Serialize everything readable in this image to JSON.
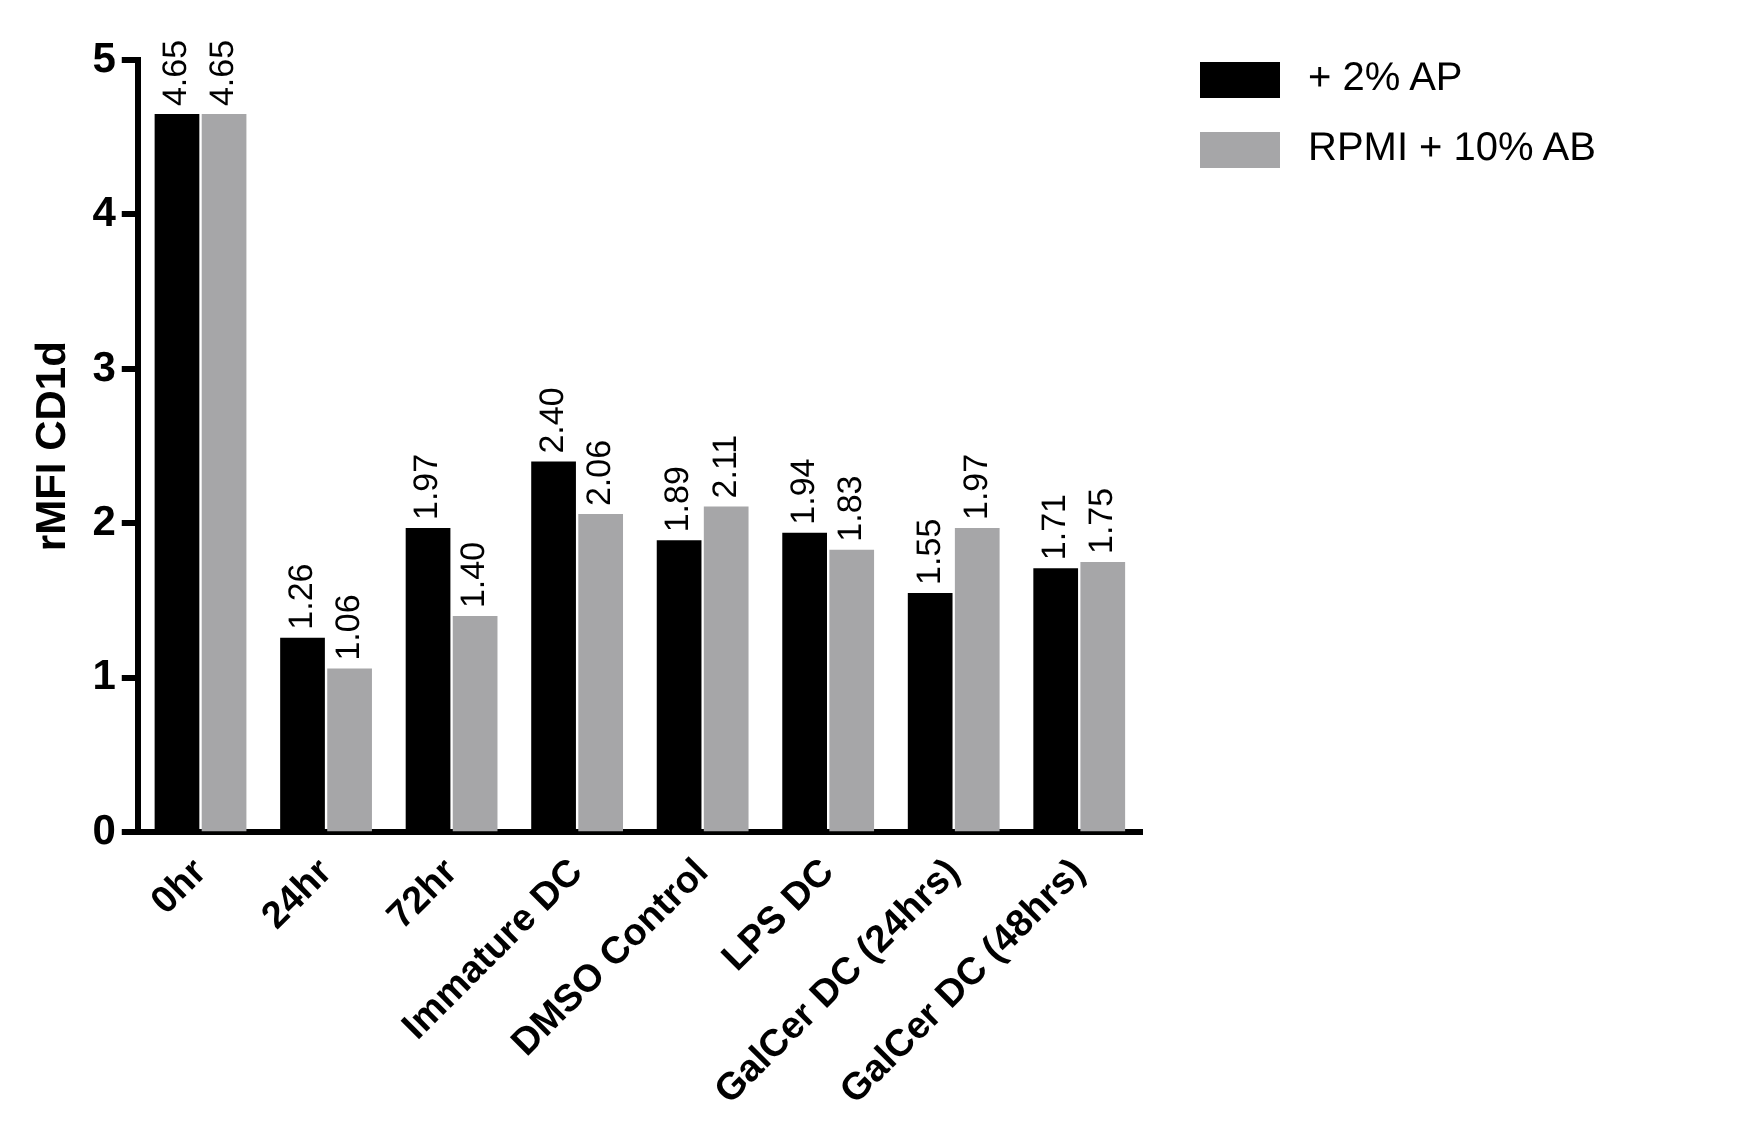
{
  "chart_data": {
    "type": "bar",
    "ylabel": "rMFI CD1d",
    "categories": [
      "0hr",
      "24hr",
      "72hr",
      "Immature DC",
      "DMSO Control",
      "LPS DC",
      "GalCer DC (24hrs)",
      "GalCer DC (48hrs)"
    ],
    "series": [
      {
        "name": "+ 2% AP",
        "color": "#000000",
        "values": [
          4.65,
          1.26,
          1.97,
          2.4,
          1.89,
          1.94,
          1.55,
          1.71
        ],
        "value_labels": [
          "4.65",
          "1.26",
          "1.97",
          "2.40",
          "1.89",
          "1.94",
          "1.55",
          "1.71"
        ]
      },
      {
        "name": "RPMI + 10% AB",
        "color": "#a6a6a8",
        "values": [
          4.65,
          1.06,
          1.4,
          2.06,
          2.11,
          1.83,
          1.97,
          1.75
        ],
        "value_labels": [
          "4.65",
          "1.06",
          "1.40",
          "2.06",
          "2.11",
          "1.83",
          "1.97",
          "1.75"
        ]
      }
    ],
    "ylim": [
      0,
      5
    ],
    "yticks": [
      0,
      1,
      2,
      3,
      4,
      5
    ],
    "grid": false,
    "legend": "top right"
  }
}
